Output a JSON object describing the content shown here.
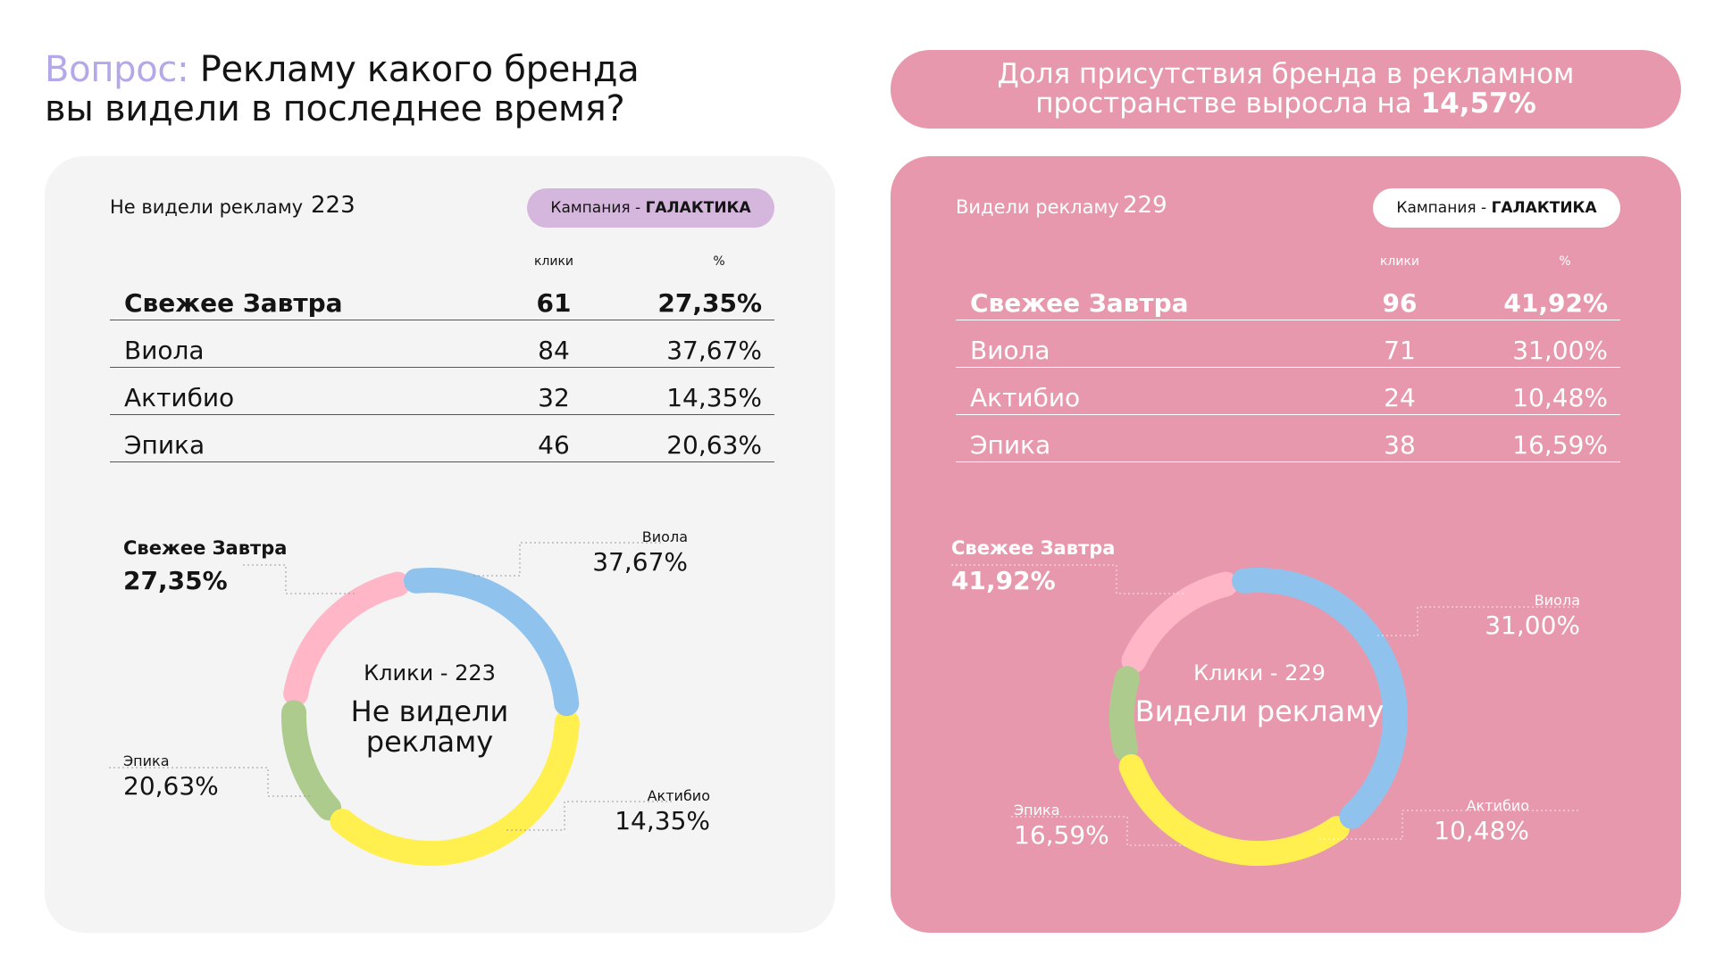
{
  "question": {
    "label": "Вопрос:",
    "text_line1": "Рекламу какого бренда",
    "text_line2": "вы видели в последнее время?"
  },
  "banner": {
    "line1": "Доля присутствия бренда в рекламном",
    "line2_prefix": "пространстве выросла на",
    "line2_value": "14,57%"
  },
  "colors": {
    "Свежее Завтра": "#8fc3ee",
    "Виола": "#fff050",
    "Актибио": "#aecb8e",
    "Эпика": "#ffb7c8",
    "brand_purple": "#b5a8e8",
    "pink_panel": "#e898ad"
  },
  "columns": {
    "clicks": "клики",
    "percent": "%"
  },
  "panels": [
    {
      "header_label": "Не видели рекламу",
      "header_count": "223",
      "badge_prefix": "Кампания - ",
      "badge_name": "ГАЛАКТИКА",
      "rows": [
        {
          "brand": "Свежее Завтра",
          "clicks": "61",
          "pct": "27,35%"
        },
        {
          "brand": "Виола",
          "clicks": "84",
          "pct": "37,67%"
        },
        {
          "brand": "Актибио",
          "clicks": "32",
          "pct": "14,35%"
        },
        {
          "brand": "Эпика",
          "clicks": "46",
          "pct": "20,63%"
        }
      ],
      "center_small": "Клики - 223",
      "center_big": "Не видели рекламу",
      "callouts": [
        {
          "name": "Свежее Завтра",
          "pct": "27,35%"
        },
        {
          "name": "Виола",
          "pct": "37,67%"
        },
        {
          "name": "Актибио",
          "pct": "14,35%"
        },
        {
          "name": "Эпика",
          "pct": "20,63%"
        }
      ]
    },
    {
      "header_label": "Видели рекламу",
      "header_count": "229",
      "badge_prefix": "Кампания - ",
      "badge_name": "ГАЛАКТИКА",
      "rows": [
        {
          "brand": "Свежее Завтра",
          "clicks": "96",
          "pct": "41,92%"
        },
        {
          "brand": "Виола",
          "clicks": "71",
          "pct": "31,00%"
        },
        {
          "brand": "Актибио",
          "clicks": "24",
          "pct": "10,48%"
        },
        {
          "brand": "Эпика",
          "clicks": "38",
          "pct": "16,59%"
        }
      ],
      "center_small": "Клики - 229",
      "center_big": "Видели рекламу",
      "callouts": [
        {
          "name": "Свежее Завтра",
          "pct": "41,92%"
        },
        {
          "name": "Виола",
          "pct": "31,00%"
        },
        {
          "name": "Актибио",
          "pct": "10,48%"
        },
        {
          "name": "Эпика",
          "pct": "16,59%"
        }
      ]
    }
  ],
  "chart_data": [
    {
      "type": "pie",
      "categories": [
        "Свежее Завтра",
        "Виола",
        "Актибио",
        "Эпика"
      ],
      "values": [
        27.35,
        37.67,
        14.35,
        20.63
      ],
      "clicks": [
        61,
        84,
        32,
        46
      ],
      "total_clicks": 223,
      "donut": true
    },
    {
      "type": "pie",
      "categories": [
        "Свежее Завтра",
        "Виола",
        "Актибио",
        "Эпика"
      ],
      "values": [
        41.92,
        31.0,
        10.48,
        16.59
      ],
      "clicks": [
        96,
        71,
        24,
        38
      ],
      "total_clicks": 229,
      "donut": true
    }
  ]
}
